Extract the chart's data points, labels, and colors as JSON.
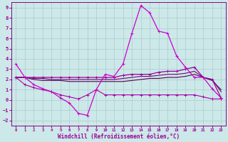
{
  "xlabel": "Windchill (Refroidissement éolien,°C)",
  "background_color": "#cce8e8",
  "grid_color": "#aacccc",
  "xlim": [
    -0.5,
    23.5
  ],
  "ylim": [
    -2.5,
    9.5
  ],
  "x_ticks": [
    0,
    1,
    2,
    3,
    4,
    5,
    6,
    7,
    8,
    9,
    10,
    11,
    12,
    13,
    14,
    15,
    16,
    17,
    18,
    19,
    20,
    21,
    22,
    23
  ],
  "y_ticks": [
    -2,
    -1,
    0,
    1,
    2,
    3,
    4,
    5,
    6,
    7,
    8,
    9
  ],
  "series": [
    {
      "x": [
        0,
        1,
        2,
        3,
        4,
        5,
        6,
        7,
        8,
        9,
        10,
        11,
        12,
        13,
        14,
        15,
        16,
        17,
        18,
        19,
        20,
        21,
        22,
        23
      ],
      "y": [
        3.5,
        2.2,
        1.5,
        1.1,
        0.8,
        0.2,
        -0.3,
        -1.3,
        -1.5,
        1.0,
        2.5,
        2.3,
        3.5,
        6.5,
        9.2,
        8.5,
        6.7,
        6.5,
        4.3,
        3.2,
        2.2,
        2.2,
        1.1,
        0.2
      ],
      "color": "#cc00cc",
      "linewidth": 0.9,
      "marker": "+",
      "markersize": 3.5,
      "zorder": 5
    },
    {
      "x": [
        0,
        1,
        2,
        3,
        4,
        5,
        6,
        7,
        8,
        9,
        10,
        11,
        12,
        13,
        14,
        15,
        16,
        17,
        18,
        19,
        20,
        21,
        22,
        23
      ],
      "y": [
        2.2,
        2.2,
        2.2,
        2.2,
        2.2,
        2.2,
        2.2,
        2.2,
        2.2,
        2.2,
        2.2,
        2.2,
        2.4,
        2.5,
        2.5,
        2.5,
        2.7,
        2.8,
        2.8,
        3.0,
        3.2,
        2.2,
        2.0,
        0.2
      ],
      "color": "#990099",
      "linewidth": 0.9,
      "marker": "+",
      "markersize": 2.5,
      "zorder": 4
    },
    {
      "x": [
        0,
        1,
        2,
        3,
        4,
        5,
        6,
        7,
        8,
        9,
        10,
        11,
        12,
        13,
        14,
        15,
        16,
        17,
        18,
        19,
        20,
        21,
        22,
        23
      ],
      "y": [
        2.2,
        2.2,
        2.1,
        2.1,
        2.0,
        2.0,
        2.0,
        2.0,
        2.0,
        2.0,
        2.0,
        2.0,
        2.1,
        2.2,
        2.3,
        2.3,
        2.4,
        2.5,
        2.5,
        2.6,
        2.8,
        2.2,
        2.0,
        0.8
      ],
      "color": "#770077",
      "linewidth": 0.8,
      "marker": null,
      "markersize": 0,
      "zorder": 3
    },
    {
      "x": [
        0,
        1,
        2,
        3,
        4,
        5,
        6,
        7,
        8,
        9,
        10,
        11,
        12,
        13,
        14,
        15,
        16,
        17,
        18,
        19,
        20,
        21,
        22,
        23
      ],
      "y": [
        2.2,
        2.2,
        2.0,
        1.9,
        1.9,
        1.9,
        1.8,
        1.8,
        1.8,
        1.8,
        1.8,
        1.8,
        1.8,
        1.9,
        2.0,
        2.1,
        2.1,
        2.2,
        2.2,
        2.3,
        2.5,
        2.2,
        1.9,
        1.0
      ],
      "color": "#550055",
      "linewidth": 0.8,
      "marker": null,
      "markersize": 0,
      "zorder": 2
    },
    {
      "x": [
        0,
        1,
        2,
        3,
        4,
        5,
        6,
        7,
        8,
        9,
        10,
        11,
        12,
        13,
        14,
        15,
        16,
        17,
        18,
        19,
        20,
        21,
        22,
        23
      ],
      "y": [
        2.2,
        1.5,
        1.2,
        1.0,
        0.8,
        0.5,
        0.3,
        0.1,
        0.5,
        1.0,
        0.5,
        0.5,
        0.5,
        0.5,
        0.5,
        0.5,
        0.5,
        0.5,
        0.5,
        0.5,
        0.5,
        0.3,
        0.1,
        0.1
      ],
      "color": "#aa00aa",
      "linewidth": 0.8,
      "marker": "+",
      "markersize": 2.5,
      "zorder": 3
    }
  ]
}
